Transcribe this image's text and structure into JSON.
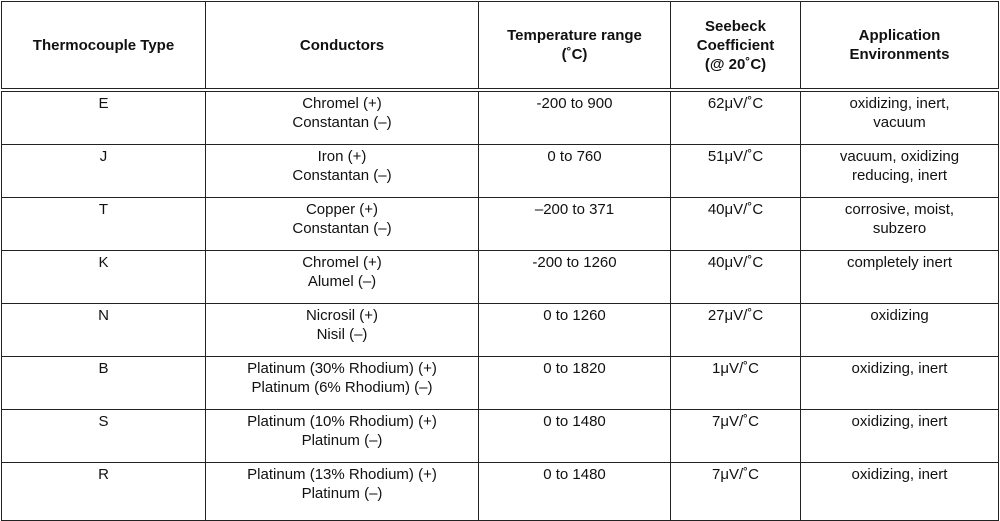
{
  "table": {
    "header": [
      [
        "Thermocouple Type"
      ],
      [
        "Conductors"
      ],
      [
        "Temperature range",
        "(˚C)"
      ],
      [
        "Seebeck",
        "Coefficient",
        "(@ 20˚C)"
      ],
      [
        "Application",
        "Environments"
      ]
    ],
    "rows": [
      [
        [
          "E"
        ],
        [
          "Chromel (+)",
          "Constantan (–)"
        ],
        [
          "-200 to 900"
        ],
        [
          "62μV/˚C"
        ],
        [
          "oxidizing, inert,",
          "vacuum"
        ]
      ],
      [
        [
          "J"
        ],
        [
          "Iron (+)",
          "Constantan (–)"
        ],
        [
          "0 to 760"
        ],
        [
          "51μV/˚C"
        ],
        [
          "vacuum, oxidizing",
          "reducing, inert"
        ]
      ],
      [
        [
          "T"
        ],
        [
          "Copper (+)",
          "Constantan (–)"
        ],
        [
          "–200 to 371"
        ],
        [
          "40μV/˚C"
        ],
        [
          "corrosive, moist,",
          "subzero"
        ]
      ],
      [
        [
          "K"
        ],
        [
          "Chromel (+)",
          "Alumel (–)"
        ],
        [
          "-200 to 1260"
        ],
        [
          "40μV/˚C"
        ],
        [
          "completely inert"
        ]
      ],
      [
        [
          "N"
        ],
        [
          "Nicrosil (+)",
          "Nisil (–)"
        ],
        [
          "0 to 1260"
        ],
        [
          "27μV/˚C"
        ],
        [
          "oxidizing"
        ]
      ],
      [
        [
          "B"
        ],
        [
          "Platinum (30% Rhodium) (+)",
          "Platinum (6% Rhodium) (–)"
        ],
        [
          "0 to 1820"
        ],
        [
          "1μV/˚C"
        ],
        [
          "oxidizing, inert"
        ]
      ],
      [
        [
          "S"
        ],
        [
          "Platinum (10% Rhodium) (+)",
          "Platinum (–)"
        ],
        [
          "0 to 1480"
        ],
        [
          "7μV/˚C"
        ],
        [
          "oxidizing, inert"
        ]
      ],
      [
        [
          "R"
        ],
        [
          "Platinum (13% Rhodium) (+)",
          "Platinum (–)"
        ],
        [
          "0 to 1480"
        ],
        [
          "7μV/˚C"
        ],
        [
          "oxidizing, inert"
        ]
      ]
    ]
  }
}
